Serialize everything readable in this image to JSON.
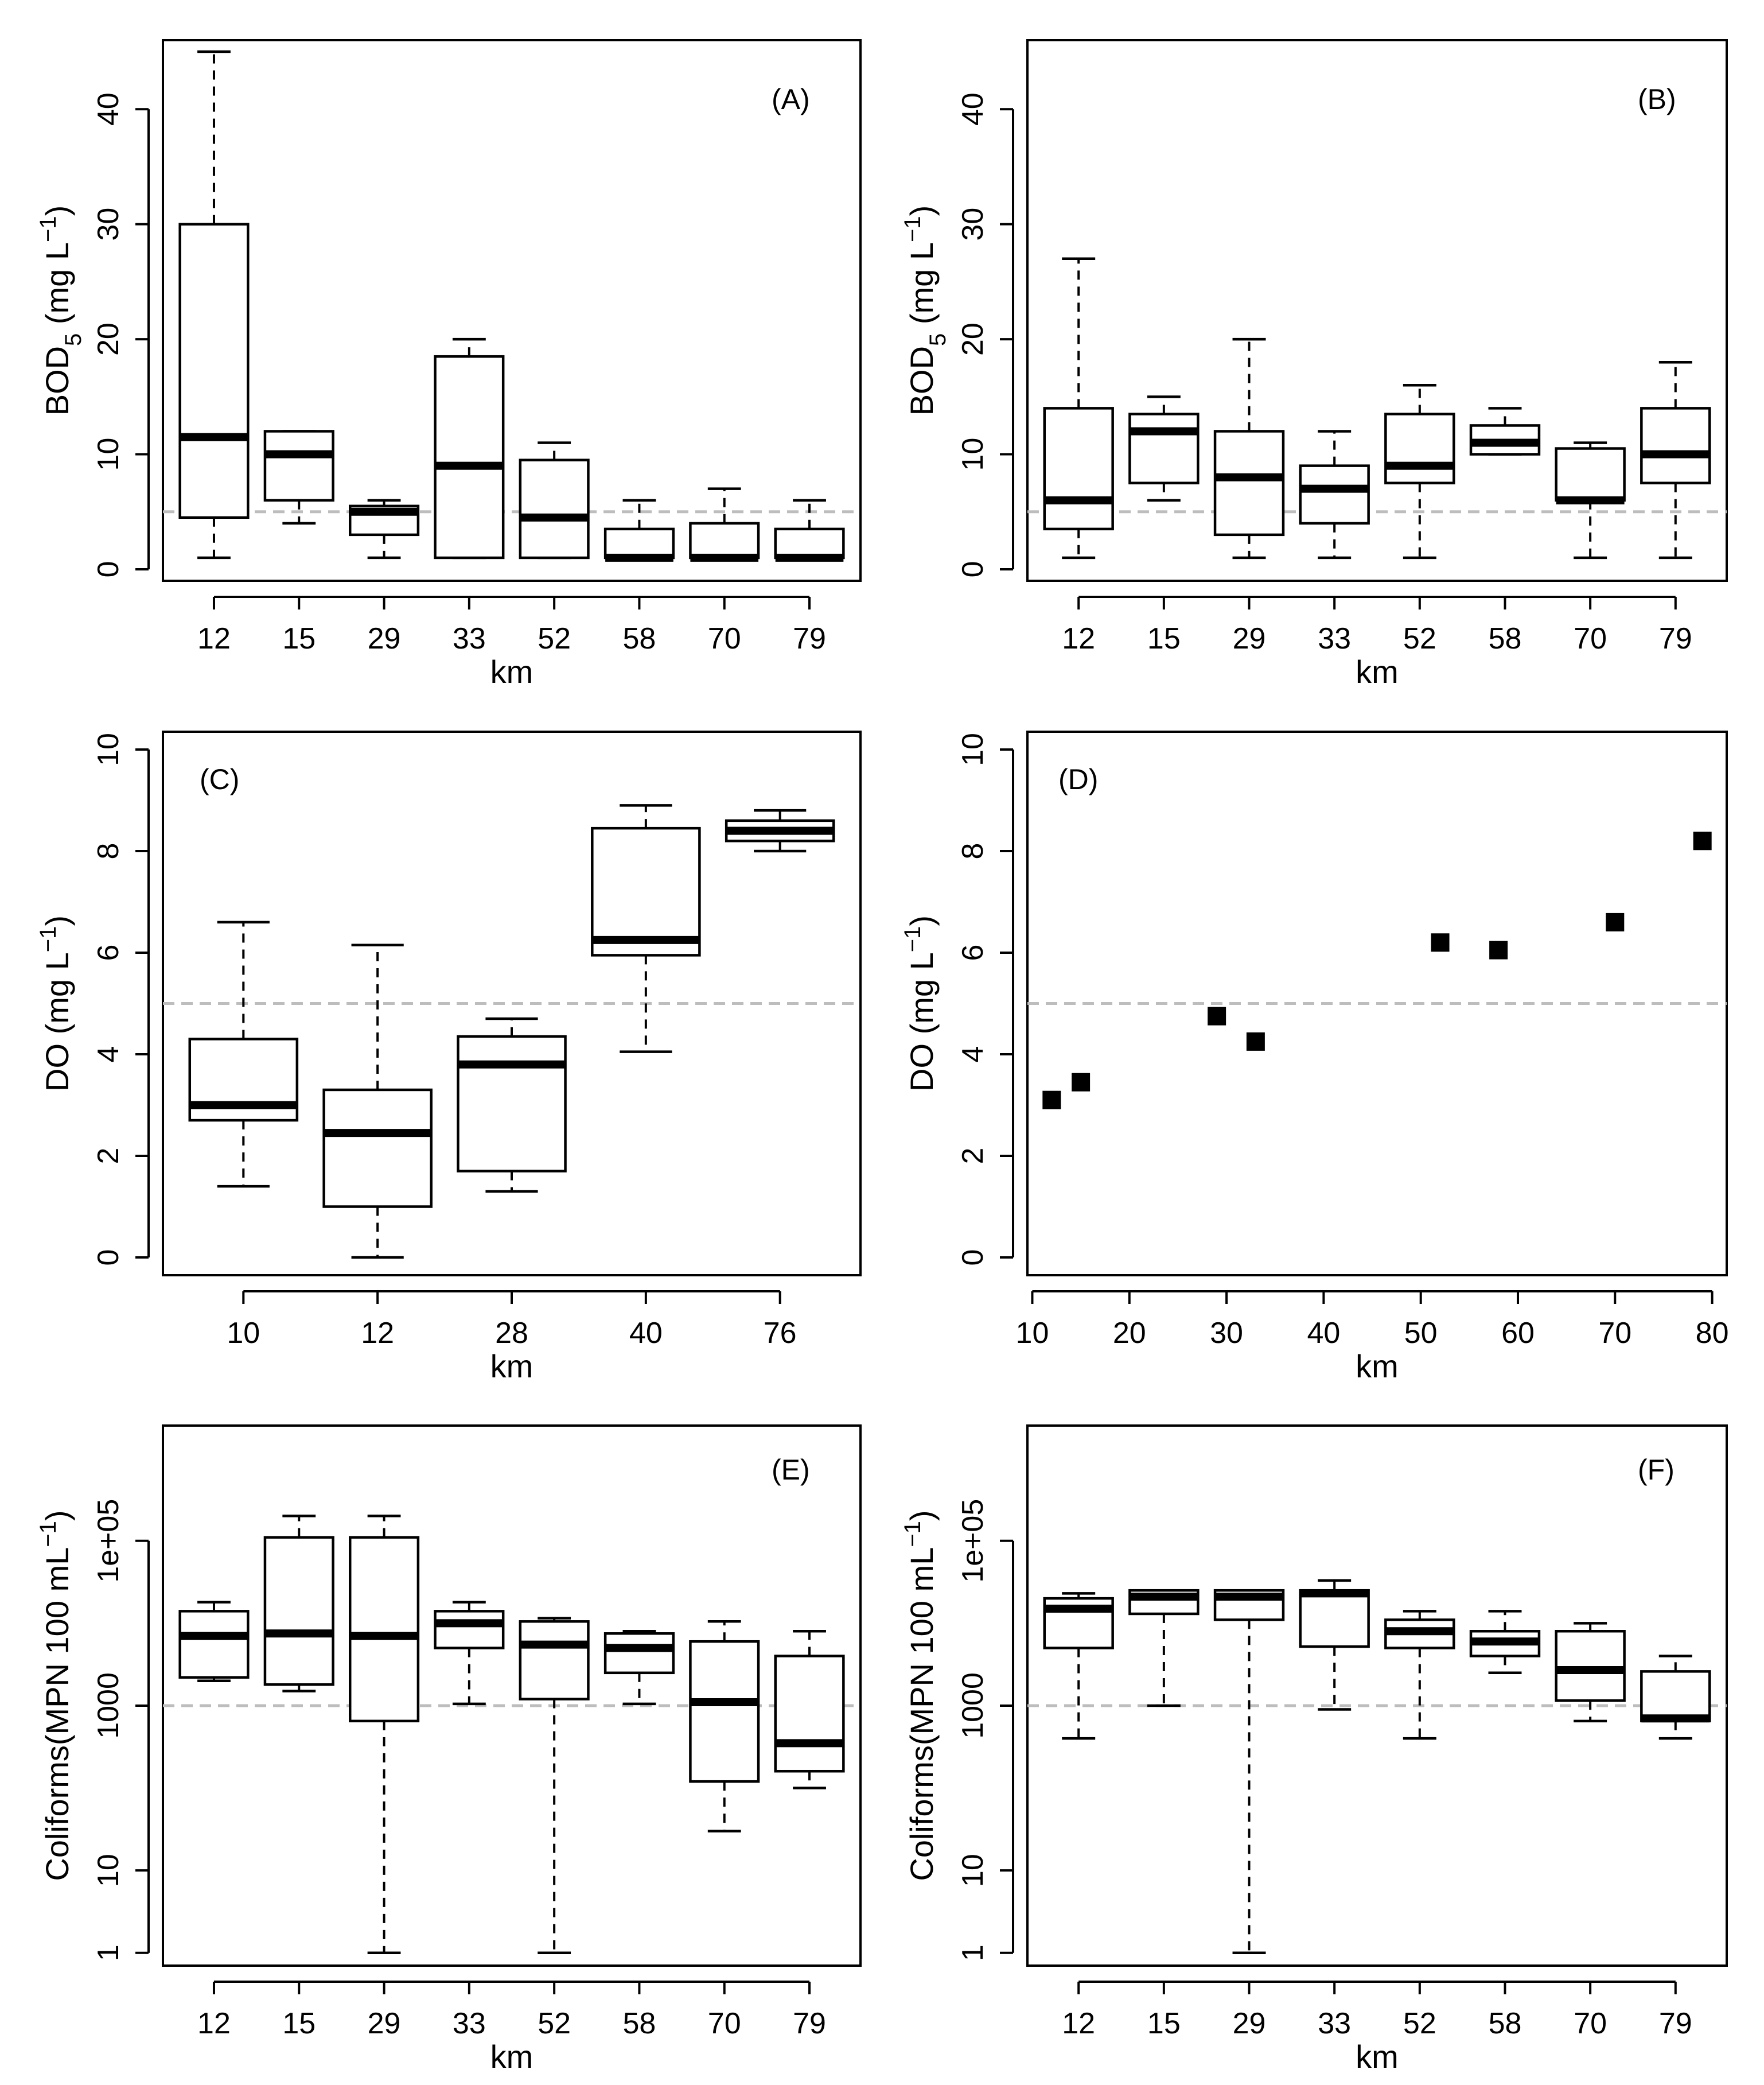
{
  "chart_data": [
    {
      "id": "A",
      "type": "box",
      "panel_label": "(A)",
      "ylabel_main": "BOD",
      "ylabel_sub": "5",
      "ylabel_tail": " (mg L",
      "ylabel_sup": "−1",
      "ylabel_close": ")",
      "xlabel": "km",
      "yscale": "linear",
      "ylim": [
        -1,
        46
      ],
      "yticks": [
        0,
        10,
        20,
        30,
        40
      ],
      "ytick_labels": [
        "0",
        "10",
        "20",
        "30",
        "40"
      ],
      "reference_line": 5,
      "categories": [
        "12",
        "15",
        "29",
        "33",
        "52",
        "58",
        "70",
        "79"
      ],
      "boxes": [
        {
          "min": 1,
          "q1": 4.5,
          "median": 11.5,
          "q3": 30,
          "max": 45
        },
        {
          "min": 4,
          "q1": 6,
          "median": 10,
          "q3": 12,
          "max": 12
        },
        {
          "min": 1,
          "q1": 3,
          "median": 5,
          "q3": 5.5,
          "max": 6
        },
        {
          "min": 1,
          "q1": 1,
          "median": 9,
          "q3": 18.5,
          "max": 20
        },
        {
          "min": 1,
          "q1": 1,
          "median": 4.5,
          "q3": 9.5,
          "max": 11
        },
        {
          "min": 1,
          "q1": 1,
          "median": 1,
          "q3": 3.5,
          "max": 6
        },
        {
          "min": 1,
          "q1": 1,
          "median": 1,
          "q3": 4,
          "max": 7
        },
        {
          "min": 1,
          "q1": 1,
          "median": 1,
          "q3": 3.5,
          "max": 6
        }
      ]
    },
    {
      "id": "B",
      "type": "box",
      "panel_label": "(B)",
      "ylabel_main": "BOD",
      "ylabel_sub": "5",
      "ylabel_tail": " (mg L",
      "ylabel_sup": "−1",
      "ylabel_close": ")",
      "xlabel": "km",
      "yscale": "linear",
      "ylim": [
        -1,
        46
      ],
      "yticks": [
        0,
        10,
        20,
        30,
        40
      ],
      "ytick_labels": [
        "0",
        "10",
        "20",
        "30",
        "40"
      ],
      "reference_line": 5,
      "categories": [
        "12",
        "15",
        "29",
        "33",
        "52",
        "58",
        "70",
        "79"
      ],
      "boxes": [
        {
          "min": 1,
          "q1": 3.5,
          "median": 6,
          "q3": 14,
          "max": 27
        },
        {
          "min": 6,
          "q1": 7.5,
          "median": 12,
          "q3": 13.5,
          "max": 15
        },
        {
          "min": 1,
          "q1": 3,
          "median": 8,
          "q3": 12,
          "max": 20
        },
        {
          "min": 1,
          "q1": 4,
          "median": 7,
          "q3": 9,
          "max": 12
        },
        {
          "min": 1,
          "q1": 7.5,
          "median": 9,
          "q3": 13.5,
          "max": 16
        },
        {
          "min": 10,
          "q1": 10,
          "median": 11,
          "q3": 12.5,
          "max": 14
        },
        {
          "min": 1,
          "q1": 6,
          "median": 6,
          "q3": 10.5,
          "max": 11
        },
        {
          "min": 1,
          "q1": 7.5,
          "median": 10,
          "q3": 14,
          "max": 18
        }
      ]
    },
    {
      "id": "C",
      "type": "box",
      "panel_label": "(C)",
      "ylabel_main": "DO (mg L",
      "ylabel_sub": "",
      "ylabel_tail": "",
      "ylabel_sup": "−1",
      "ylabel_close": ")",
      "xlabel": "km",
      "yscale": "linear",
      "ylim": [
        -0.35,
        10.35
      ],
      "yticks": [
        0,
        2,
        4,
        6,
        8,
        10
      ],
      "ytick_labels": [
        "0",
        "2",
        "4",
        "6",
        "8",
        "10"
      ],
      "reference_line": 5,
      "categories": [
        "10",
        "12",
        "28",
        "40",
        "76"
      ],
      "boxes": [
        {
          "min": 1.4,
          "q1": 2.7,
          "median": 3.0,
          "q3": 4.3,
          "max": 6.6
        },
        {
          "min": 0,
          "q1": 1.0,
          "median": 2.45,
          "q3": 3.3,
          "max": 6.15
        },
        {
          "min": 1.3,
          "q1": 1.7,
          "median": 3.8,
          "q3": 4.35,
          "max": 4.7
        },
        {
          "min": 4.05,
          "q1": 5.95,
          "median": 6.25,
          "q3": 8.45,
          "max": 8.9
        },
        {
          "min": 8.0,
          "q1": 8.2,
          "median": 8.4,
          "q3": 8.6,
          "max": 8.8
        }
      ]
    },
    {
      "id": "D",
      "type": "scatter",
      "panel_label": "(D)",
      "ylabel_main": "DO (mg L",
      "ylabel_sub": "",
      "ylabel_tail": "",
      "ylabel_sup": "−1",
      "ylabel_close": ")",
      "xlabel": "km",
      "yscale": "linear",
      "ylim": [
        -0.35,
        10.35
      ],
      "xlim": [
        9.5,
        81.5
      ],
      "yticks": [
        0,
        2,
        4,
        6,
        8,
        10
      ],
      "ytick_labels": [
        "0",
        "2",
        "4",
        "6",
        "8",
        "10"
      ],
      "xticks": [
        10,
        20,
        30,
        40,
        50,
        60,
        70,
        80
      ],
      "xtick_labels": [
        "10",
        "20",
        "30",
        "40",
        "50",
        "60",
        "70",
        "80"
      ],
      "reference_line": 5,
      "x": [
        12,
        15,
        29,
        33,
        52,
        58,
        70,
        79
      ],
      "y": [
        3.1,
        3.45,
        4.75,
        4.25,
        6.2,
        6.05,
        6.6,
        8.2
      ]
    },
    {
      "id": "E",
      "type": "box",
      "panel_label": "(E)",
      "ylabel_main": "Coliforms(MPN 100 mL",
      "ylabel_sub": "",
      "ylabel_tail": "",
      "ylabel_sup": "−1",
      "ylabel_close": ")",
      "xlabel": "km",
      "yscale": "log",
      "ylim": [
        0.7,
        2500000
      ],
      "yticks": [
        1,
        10,
        1000,
        100000
      ],
      "ytick_labels": [
        "1",
        "10",
        "1000",
        "1e+05"
      ],
      "reference_line": 1000,
      "categories": [
        "12",
        "15",
        "29",
        "33",
        "52",
        "58",
        "70",
        "79"
      ],
      "boxes": [
        {
          "min": 2000,
          "q1": 2200,
          "median": 7000,
          "q3": 14000,
          "max": 18000
        },
        {
          "min": 1500,
          "q1": 1800,
          "median": 7500,
          "q3": 110000,
          "max": 200000
        },
        {
          "min": 1,
          "q1": 650,
          "median": 7000,
          "q3": 110000,
          "max": 200000
        },
        {
          "min": 1050,
          "q1": 5000,
          "median": 10000,
          "q3": 14000,
          "max": 18000
        },
        {
          "min": 1,
          "q1": 1200,
          "median": 5500,
          "q3": 10500,
          "max": 11500
        },
        {
          "min": 1050,
          "q1": 2500,
          "median": 5000,
          "q3": 7500,
          "max": 8000
        },
        {
          "min": 30,
          "q1": 120,
          "median": 1100,
          "q3": 6000,
          "max": 10500
        },
        {
          "min": 100,
          "q1": 160,
          "median": 350,
          "q3": 4000,
          "max": 8000
        }
      ]
    },
    {
      "id": "F",
      "type": "box",
      "panel_label": "(F)",
      "ylabel_main": "Coliforms(MPN 100 mL",
      "ylabel_sub": "",
      "ylabel_tail": "",
      "ylabel_sup": "−1",
      "ylabel_close": ")",
      "xlabel": "km",
      "yscale": "log",
      "ylim": [
        0.7,
        2500000
      ],
      "yticks": [
        1,
        10,
        1000,
        100000
      ],
      "ytick_labels": [
        "1",
        "10",
        "1000",
        "1e+05"
      ],
      "reference_line": 1000,
      "categories": [
        "12",
        "15",
        "29",
        "33",
        "52",
        "58",
        "70",
        "79"
      ],
      "boxes": [
        {
          "min": 400,
          "q1": 5000,
          "median": 15000,
          "q3": 20000,
          "max": 23000
        },
        {
          "min": 1000,
          "q1": 13000,
          "median": 21000,
          "q3": 25000,
          "max": 25000
        },
        {
          "min": 1,
          "q1": 11000,
          "median": 21000,
          "q3": 25000,
          "max": 25000
        },
        {
          "min": 900,
          "q1": 5200,
          "median": 23000,
          "q3": 25000,
          "max": 33000
        },
        {
          "min": 400,
          "q1": 5000,
          "median": 8000,
          "q3": 11000,
          "max": 14000
        },
        {
          "min": 2500,
          "q1": 4000,
          "median": 6000,
          "q3": 8000,
          "max": 14000
        },
        {
          "min": 650,
          "q1": 1150,
          "median": 2700,
          "q3": 8000,
          "max": 10000
        },
        {
          "min": 400,
          "q1": 650,
          "median": 700,
          "q3": 2600,
          "max": 4000
        }
      ]
    }
  ]
}
